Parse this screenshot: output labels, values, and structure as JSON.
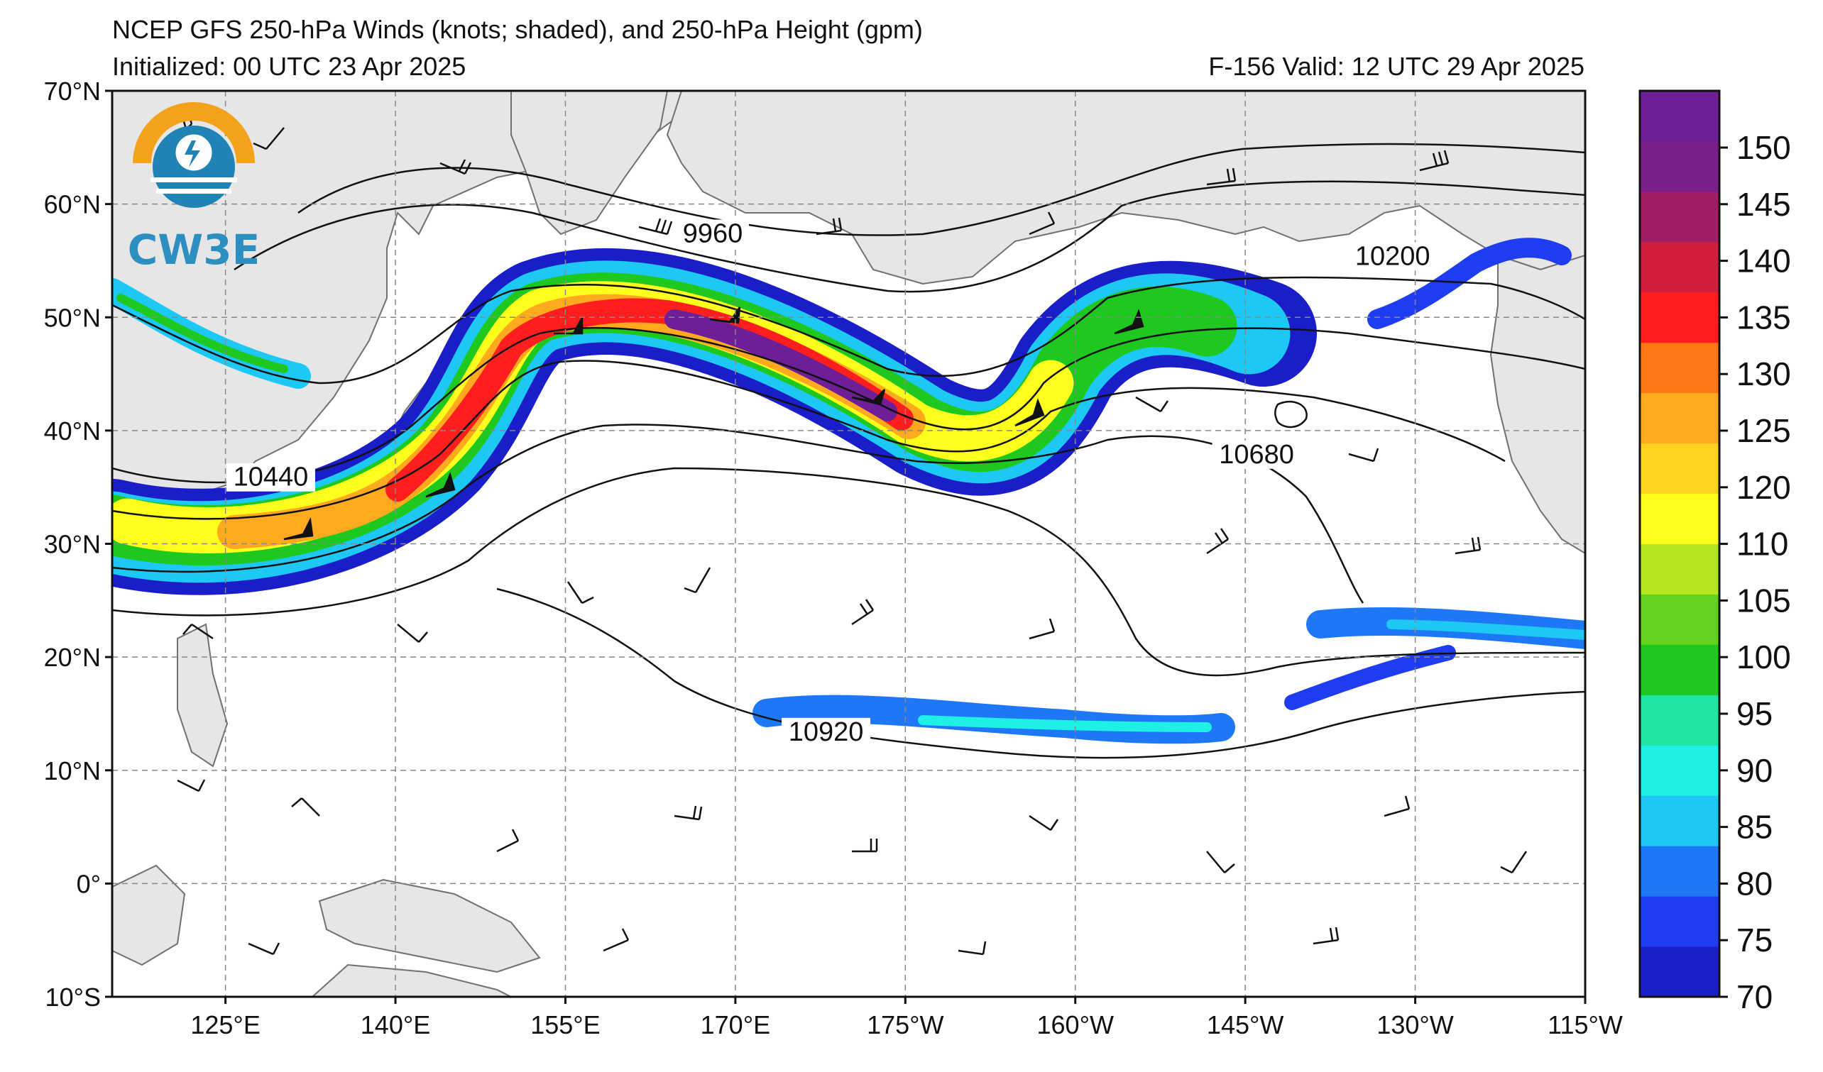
{
  "header": {
    "title": "NCEP GFS 250-hPa Winds (knots; shaded), and 250-hPa Height (gpm)",
    "initialized": "Initialized: 00 UTC 23 Apr 2025",
    "valid": "F-156  Valid: 12 UTC 29 Apr 2025"
  },
  "logo": {
    "text": "CW3E",
    "ring_color": "#f4a21c",
    "water_color": "#1f83b5"
  },
  "map": {
    "lon_min": 115,
    "lon_max": 245,
    "lat_min": -10,
    "lat_max": 70,
    "lat_labels": [
      "70°N",
      "60°N",
      "50°N",
      "40°N",
      "30°N",
      "20°N",
      "10°N",
      "0°",
      "10°S"
    ],
    "lon_labels": [
      "125°E",
      "140°E",
      "155°E",
      "170°E",
      "175°W",
      "160°W",
      "145°W",
      "130°W",
      "115°W"
    ],
    "contour_labels": [
      {
        "text": "9960",
        "lon": 168,
        "lat": 57
      },
      {
        "text": "10200",
        "lon": 228,
        "lat": 55
      },
      {
        "text": "10440",
        "lon": 129,
        "lat": 35.5
      },
      {
        "text": "10680",
        "lon": 216,
        "lat": 37.5
      },
      {
        "text": "10920",
        "lon": 178,
        "lat": 13
      }
    ]
  },
  "colorbar": {
    "labels": [
      "70",
      "75",
      "80",
      "85",
      "90",
      "95",
      "100",
      "105",
      "110",
      "120",
      "125",
      "130",
      "135",
      "140",
      "145",
      "150"
    ],
    "colors": [
      "#1a1ec8",
      "#1e3cf0",
      "#1e78f5",
      "#1ec8f5",
      "#1ef0e6",
      "#1ee6a0",
      "#1ec81e",
      "#64d21e",
      "#b4e61e",
      "#ffff1e",
      "#ffd21e",
      "#ffaa1e",
      "#ff7814",
      "#ff1e1e",
      "#d21e3c",
      "#a01e64",
      "#7a1e8c",
      "#6e1e96"
    ]
  }
}
